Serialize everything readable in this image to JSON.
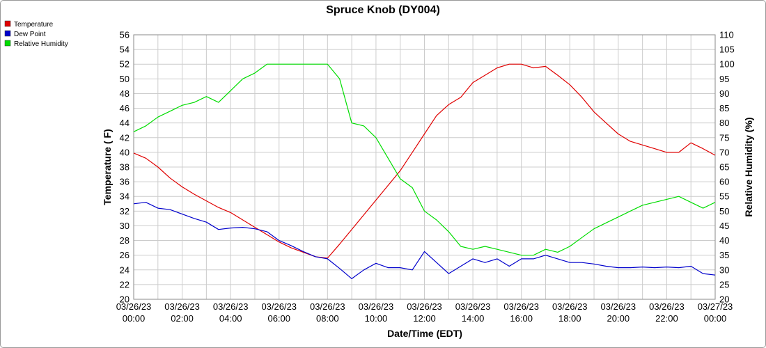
{
  "chart_data": {
    "type": "line",
    "title": "Spruce Knob (DY004)",
    "xlabel": "Date/Time (EDT)",
    "ylabel": "Temperature ( F)",
    "y2label": "Relative Humidity (%)",
    "ylim": [
      20,
      56
    ],
    "y2lim": [
      20,
      110
    ],
    "yticks": [
      "20",
      "22",
      "24",
      "26",
      "28",
      "30",
      "32",
      "34",
      "36",
      "38",
      "40",
      "42",
      "44",
      "46",
      "48",
      "50",
      "52",
      "54",
      "56"
    ],
    "y2ticks": [
      "20",
      "25",
      "30",
      "35",
      "40",
      "45",
      "50",
      "55",
      "60",
      "65",
      "70",
      "75",
      "80",
      "85",
      "90",
      "95",
      "100",
      "105",
      "110"
    ],
    "xticks": [
      {
        "date": "03/26/23",
        "time": "00:00"
      },
      {
        "date": "03/26/23",
        "time": "02:00"
      },
      {
        "date": "03/26/23",
        "time": "04:00"
      },
      {
        "date": "03/26/23",
        "time": "06:00"
      },
      {
        "date": "03/26/23",
        "time": "08:00"
      },
      {
        "date": "03/26/23",
        "time": "10:00"
      },
      {
        "date": "03/26/23",
        "time": "12:00"
      },
      {
        "date": "03/26/23",
        "time": "14:00"
      },
      {
        "date": "03/26/23",
        "time": "16:00"
      },
      {
        "date": "03/26/23",
        "time": "18:00"
      },
      {
        "date": "03/26/23",
        "time": "20:00"
      },
      {
        "date": "03/26/23",
        "time": "22:00"
      },
      {
        "date": "03/27/23",
        "time": "00:00"
      }
    ],
    "legend": {
      "placement": "top-left"
    },
    "grid": true,
    "series": [
      {
        "name": "Temperature",
        "color": "#e00000",
        "axis": "left",
        "hours": [
          0,
          0.5,
          1,
          1.5,
          2,
          2.5,
          3,
          3.5,
          4,
          4.5,
          5,
          5.5,
          6,
          6.5,
          7,
          7.5,
          8,
          8.5,
          9,
          9.5,
          10,
          10.5,
          11,
          11.5,
          12,
          12.5,
          13,
          13.5,
          14,
          14.5,
          15,
          15.5,
          16,
          16.5,
          17,
          17.5,
          18,
          18.5,
          19,
          19.5,
          20,
          20.5,
          21,
          21.5,
          22,
          22.5,
          23,
          23.5,
          24
        ],
        "values": [
          39.9,
          39.2,
          38.0,
          36.5,
          35.3,
          34.3,
          33.4,
          32.5,
          31.8,
          30.8,
          29.8,
          28.8,
          27.8,
          27.0,
          26.4,
          25.8,
          25.6,
          27.5,
          29.5,
          31.5,
          33.5,
          35.5,
          37.5,
          40.0,
          42.5,
          45.0,
          46.5,
          47.5,
          49.5,
          50.5,
          51.5,
          52.0,
          52.0,
          51.5,
          51.7,
          50.5,
          49.2,
          47.5,
          45.5,
          44.0,
          42.5,
          41.5,
          41.0,
          40.5,
          40.0,
          40.0,
          41.3,
          40.5,
          39.6
        ]
      },
      {
        "name": "Dew Point",
        "color": "#0000cc",
        "axis": "left",
        "hours": [
          0,
          0.5,
          1,
          1.5,
          2,
          2.5,
          3,
          3.5,
          4,
          4.5,
          5,
          5.5,
          6,
          6.5,
          7,
          7.5,
          8,
          8.5,
          9,
          9.5,
          10,
          10.5,
          11,
          11.5,
          12,
          12.5,
          13,
          13.5,
          14,
          14.5,
          15,
          15.5,
          16,
          16.5,
          17,
          17.5,
          18,
          18.5,
          19,
          19.5,
          20,
          20.5,
          21,
          21.5,
          22,
          22.5,
          23,
          23.5,
          24
        ],
        "values": [
          33.0,
          33.2,
          32.4,
          32.2,
          31.6,
          31.0,
          30.5,
          29.5,
          29.7,
          29.8,
          29.6,
          29.2,
          28.0,
          27.3,
          26.5,
          25.8,
          25.5,
          24.2,
          22.8,
          24.0,
          24.9,
          24.3,
          24.3,
          24.0,
          26.5,
          25.0,
          23.5,
          24.5,
          25.5,
          25.0,
          25.5,
          24.5,
          25.5,
          25.5,
          26.0,
          25.5,
          25.0,
          25.0,
          24.8,
          24.5,
          24.3,
          24.3,
          24.4,
          24.3,
          24.4,
          24.3,
          24.5,
          23.5,
          23.3
        ]
      },
      {
        "name": "Relative Humidity",
        "color": "#00dd00",
        "axis": "right",
        "hours": [
          0,
          0.5,
          1,
          1.5,
          2,
          2.5,
          3,
          3.5,
          4,
          4.5,
          5,
          5.5,
          6,
          6.5,
          7,
          7.5,
          8,
          8.5,
          9,
          9.5,
          10,
          10.5,
          11,
          11.5,
          12,
          12.5,
          13,
          13.5,
          14,
          14.5,
          15,
          15.5,
          16,
          16.5,
          17,
          17.5,
          18,
          18.5,
          19,
          19.5,
          20,
          20.5,
          21,
          21.5,
          22,
          22.5,
          23,
          23.5,
          24
        ],
        "values": [
          77,
          79,
          82,
          84,
          86,
          87,
          89,
          87,
          91,
          95,
          97,
          100,
          100,
          100,
          100,
          100,
          100,
          95,
          80,
          79,
          75,
          68,
          61,
          58,
          50,
          47,
          43,
          38,
          37,
          38,
          37,
          36,
          35,
          35,
          37,
          36,
          38,
          41,
          44,
          46,
          48,
          50,
          52,
          53,
          54,
          55,
          53,
          51,
          53
        ]
      }
    ]
  }
}
